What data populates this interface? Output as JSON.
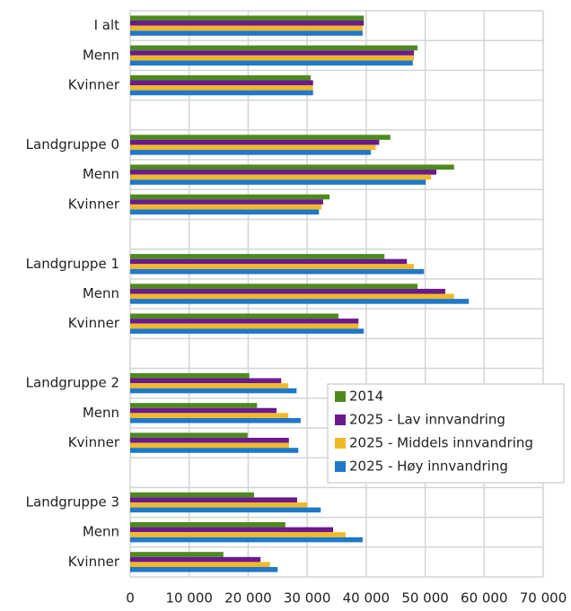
{
  "chart_data": {
    "type": "barh",
    "categories": [
      "I alt",
      "Menn",
      "Kvinner",
      null,
      "Landgruppe 0",
      "Menn",
      "Kvinner",
      null,
      "Landgruppe 1",
      "Menn",
      "Kvinner",
      null,
      "Landgruppe 2",
      "Menn",
      "Kvinner",
      null,
      "Landgruppe 3",
      "Menn",
      "Kvinner"
    ],
    "series": [
      {
        "name": "2014",
        "color": "#4d8a1e",
        "values": [
          39600,
          48700,
          30600,
          null,
          44100,
          54900,
          33800,
          null,
          43100,
          48700,
          35300,
          null,
          20200,
          21500,
          19900,
          null,
          21000,
          26300,
          15800
        ]
      },
      {
        "name": "2025 - Lav innvandring",
        "color": "#6a1a8a",
        "values": [
          39600,
          48100,
          31000,
          null,
          42200,
          51900,
          32700,
          null,
          46900,
          53400,
          38700,
          null,
          25600,
          24800,
          26900,
          null,
          28300,
          34400,
          22100
        ]
      },
      {
        "name": "2025 - Middels innvandring",
        "color": "#f2b82a",
        "values": [
          39400,
          48100,
          31000,
          null,
          41600,
          51000,
          32400,
          null,
          48100,
          54900,
          38700,
          null,
          26800,
          26800,
          26900,
          null,
          30000,
          36500,
          23700
        ]
      },
      {
        "name": "2025 - Høy innvandring",
        "color": "#1f78c8",
        "values": [
          39400,
          47900,
          31000,
          null,
          40800,
          50100,
          32000,
          null,
          49800,
          57400,
          39600,
          null,
          28200,
          28900,
          28500,
          null,
          32300,
          39400,
          25000
        ]
      }
    ],
    "xlim": [
      0,
      70000
    ],
    "xticks": [
      0,
      {
        "value": 10000,
        "label": "10 000"
      },
      {
        "value": 20000,
        "label": "20 000"
      },
      {
        "value": 30000,
        "label": "30 000"
      },
      {
        "value": 40000,
        "label": "40 000"
      },
      {
        "value": 50000,
        "label": "50 000"
      },
      {
        "value": 60000,
        "label": "60 000"
      },
      {
        "value": 70000,
        "label": "70 000"
      }
    ],
    "grid": true,
    "legend_position": "lower right"
  }
}
